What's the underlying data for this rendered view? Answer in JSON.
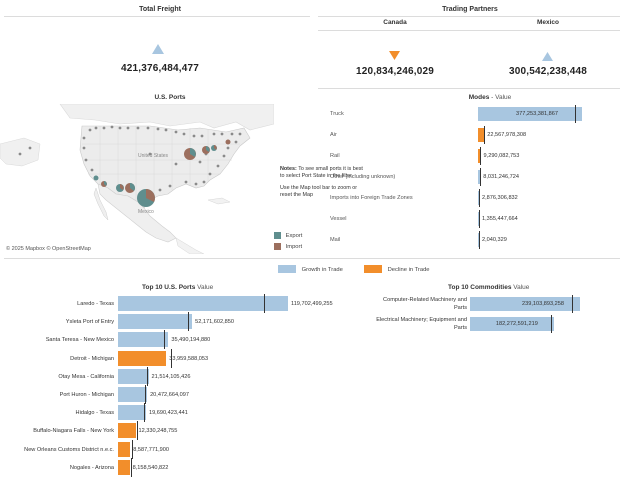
{
  "total_freight": {
    "title": "Total Freight",
    "value": "421,376,484,477",
    "trend_icon": "triangle-up-icon",
    "color": "#a8c6e0"
  },
  "trading_partners": {
    "title": "Trading Partners",
    "canada": {
      "label": "Canada",
      "value": "120,834,246,029",
      "trend_icon": "triangle-down-icon",
      "color": "#f28e2b"
    },
    "mexico": {
      "label": "Mexico",
      "value": "300,542,238,448",
      "trend_icon": "triangle-up-icon",
      "color": "#a8c6e0"
    }
  },
  "map": {
    "title": "U.S. Ports",
    "attribution": "© 2025 Mapbox © OpenStreetMap",
    "labels": {
      "us": "United States",
      "mexico": "Mexico"
    },
    "notes_bold": "Notes:",
    "notes_line1": "To see small ports it is best to select Port State in the filter.",
    "notes_line2": "Use the Map tool bar to zoom or reset the Map",
    "legend": [
      {
        "label": "Export",
        "color": "#5f8e8e"
      },
      {
        "label": "Import",
        "color": "#9c6f5e"
      }
    ]
  },
  "modes": {
    "title": "Modes",
    "suffix": " - Value",
    "rows": [
      {
        "label": "Truck",
        "value": 377253381867,
        "display": "377,253,381,867",
        "status": "growth"
      },
      {
        "label": "Air",
        "value": 22567978308,
        "display": "22,567,978,308",
        "status": "decline"
      },
      {
        "label": "Rail",
        "value": 9290082753,
        "display": "9,290,082,753",
        "status": "decline"
      },
      {
        "label": "Other (including unknown)",
        "value": 8031246724,
        "display": "8,031,246,724",
        "status": "growth"
      },
      {
        "label": "Imports into Foreign Trade Zones",
        "value": 2876306832,
        "display": "2,876,306,832",
        "status": "growth"
      },
      {
        "label": "Vessel",
        "value": 1355447664,
        "display": "1,355,447,664",
        "status": "growth"
      },
      {
        "label": "Mail",
        "value": 2040329,
        "display": "2,040,329",
        "status": "growth"
      }
    ]
  },
  "legend": {
    "growth_label": "Growth in Trade",
    "growth_color": "#a8c6e0",
    "decline_label": "Decline in Trade",
    "decline_color": "#f28e2b"
  },
  "top_ports": {
    "title": "Top 10 U.S. Ports",
    "suffix": " Value",
    "rows": [
      {
        "label": "Laredo - Texas",
        "value": 119702499255,
        "display": "119,702,499,255",
        "status": "growth",
        "ref": 0.86
      },
      {
        "label": "Ysleta Port of Entry",
        "value": 52171602850,
        "display": "52,171,602,850",
        "status": "growth",
        "ref": 0.94
      },
      {
        "label": "Santa Teresa - New Mexico",
        "value": 35490194880,
        "display": "35,490,194,880",
        "status": "growth",
        "ref": 0.92
      },
      {
        "label": "Detroit - Michigan",
        "value": 33959588053,
        "display": "33,959,588,053",
        "status": "decline",
        "ref": 1.1
      },
      {
        "label": "Otay Mesa - California",
        "value": 21514105426,
        "display": "21,514,105,426",
        "status": "growth",
        "ref": 0.95
      },
      {
        "label": "Port Huron - Michigan",
        "value": 20472664097,
        "display": "20,472,664,097",
        "status": "growth",
        "ref": 0.92
      },
      {
        "label": "Hidalgo - Texas",
        "value": 19690423441,
        "display": "19,690,423,441",
        "status": "growth",
        "ref": 0.93
      },
      {
        "label": "Buffalo-Niagara Falls - New York",
        "value": 12330248755,
        "display": "12,330,248,755",
        "status": "decline",
        "ref": 1.1
      },
      {
        "label": "New Orleans Customs District n.e.c.",
        "value": 8587771900,
        "display": "8,587,771,900",
        "status": "decline",
        "ref": 1.15
      },
      {
        "label": "Nogales - Arizona",
        "value": 8158540822,
        "display": "8,158,540,822",
        "status": "decline",
        "ref": 1.15
      }
    ]
  },
  "top_commodities": {
    "title": "Top 10 Commodities",
    "suffix": " Value",
    "rows": [
      {
        "label_line1": "Computer-Related Machinery and",
        "label_line2": "Parts",
        "value": 239103893258,
        "display": "239,103,893,258",
        "status": "growth",
        "ref": 0.93
      },
      {
        "label_line1": "Electrical Machinery; Equipment and",
        "label_line2": "Parts",
        "value": 182272591219,
        "display": "182,272,591,219",
        "status": "growth",
        "ref": 0.97
      }
    ]
  }
}
